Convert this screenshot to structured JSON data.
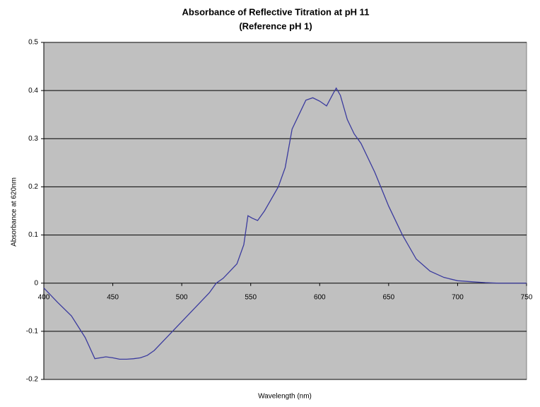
{
  "chart_data": {
    "type": "line",
    "title": "Absorbance of Reflective Titration at pH 11",
    "subtitle": "(Reference pH 1)",
    "x_label": "Wavelength (nm)",
    "y_label": "Absorbance at 620nm",
    "x": [
      400,
      410,
      420,
      430,
      437,
      445,
      450,
      455,
      460,
      465,
      470,
      475,
      480,
      490,
      500,
      510,
      520,
      525,
      530,
      540,
      545,
      548,
      551,
      555,
      560,
      570,
      575,
      580,
      585,
      590,
      595,
      600,
      605,
      610,
      612,
      615,
      620,
      625,
      630,
      640,
      650,
      660,
      670,
      680,
      690,
      700,
      710,
      720,
      730,
      750
    ],
    "series": [
      {
        "name": "Absorbance",
        "color": "#3a3a9e",
        "values": [
          -0.01,
          -0.04,
          -0.068,
          -0.113,
          -0.157,
          -0.153,
          -0.155,
          -0.158,
          -0.158,
          -0.157,
          -0.155,
          -0.15,
          -0.14,
          -0.11,
          -0.08,
          -0.05,
          -0.02,
          0,
          0.01,
          0.04,
          0.08,
          0.14,
          0.135,
          0.13,
          0.15,
          0.2,
          0.24,
          0.32,
          0.35,
          0.38,
          0.385,
          0.378,
          0.368,
          0.395,
          0.405,
          0.39,
          0.34,
          0.31,
          0.29,
          0.23,
          0.16,
          0.1,
          0.05,
          0.025,
          0.012,
          0.005,
          0.003,
          0.001,
          0,
          0
        ]
      }
    ],
    "xlim": [
      400,
      750
    ],
    "ylim": [
      -0.2,
      0.5
    ],
    "xticks": [
      400,
      450,
      500,
      550,
      600,
      650,
      700,
      750
    ],
    "yticks": [
      0.5,
      0.4,
      0.3,
      0.2,
      0.1,
      0,
      -0.1,
      -0.2
    ],
    "grid": true,
    "plot_background": "#c0c0c0"
  }
}
